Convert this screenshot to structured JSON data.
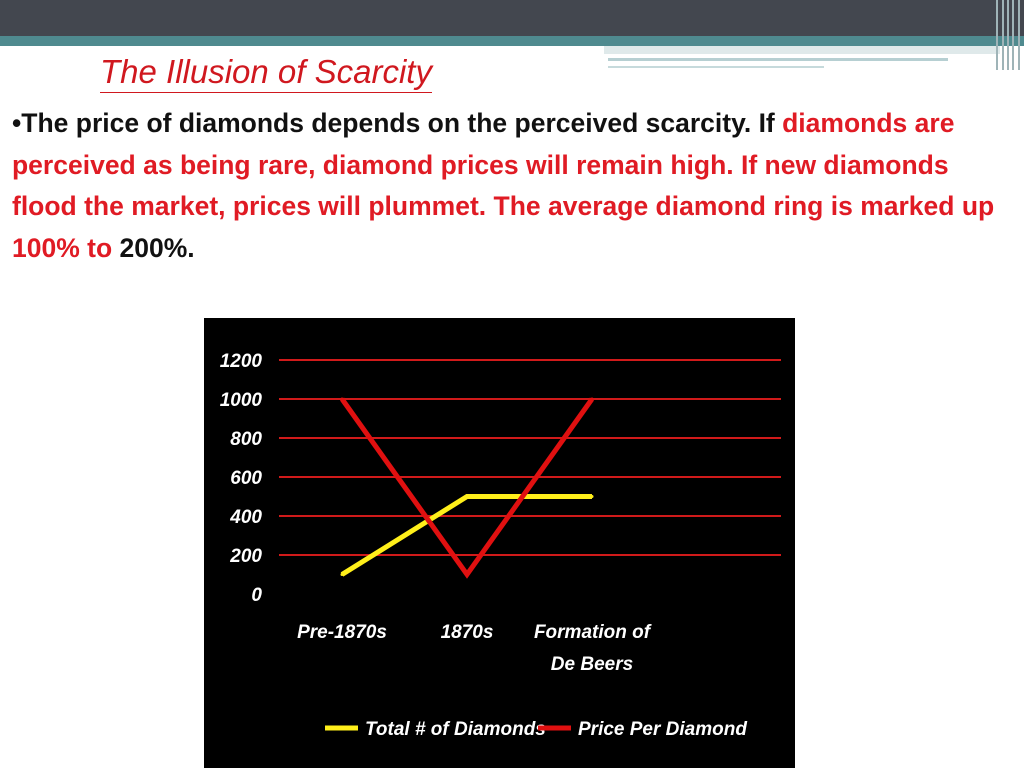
{
  "slide": {
    "title": "The Illusion of Scarcity",
    "body": {
      "bullet": "•",
      "black_text": "The price of diamonds depends on the perceived scarcity. If ",
      "red_text": "diamonds are perceived as being rare, diamond prices will remain high. If new diamonds flood the market, prices will plummet. The average diamond ring is marked up 100% to ",
      "black_tail": "200%."
    }
  },
  "colors": {
    "title": "#d0181f",
    "emphasis_text": "#e01b24",
    "header_dark": "#43474f",
    "header_teal": "#4f8a8f",
    "chart_background": "#000000",
    "gridline": "#d11a1a",
    "series_diamonds": "#ffef1a",
    "series_price": "#e01010"
  },
  "chart_data": {
    "type": "line",
    "title": "",
    "xlabel": "",
    "ylabel": "",
    "categories": [
      [
        "Pre-1870s"
      ],
      [
        "1870s"
      ],
      [
        "Formation of",
        "De Beers"
      ]
    ],
    "ylim": [
      0,
      1200
    ],
    "yticks": [
      0,
      200,
      400,
      600,
      800,
      1000,
      1200
    ],
    "grid": true,
    "legend_position": "bottom",
    "series": [
      {
        "name": "Total # of Diamonds",
        "color": "#ffef1a",
        "values": [
          100,
          500,
          500
        ]
      },
      {
        "name": "Price Per Diamond",
        "color": "#e01010",
        "values": [
          1000,
          100,
          1000
        ]
      }
    ]
  }
}
